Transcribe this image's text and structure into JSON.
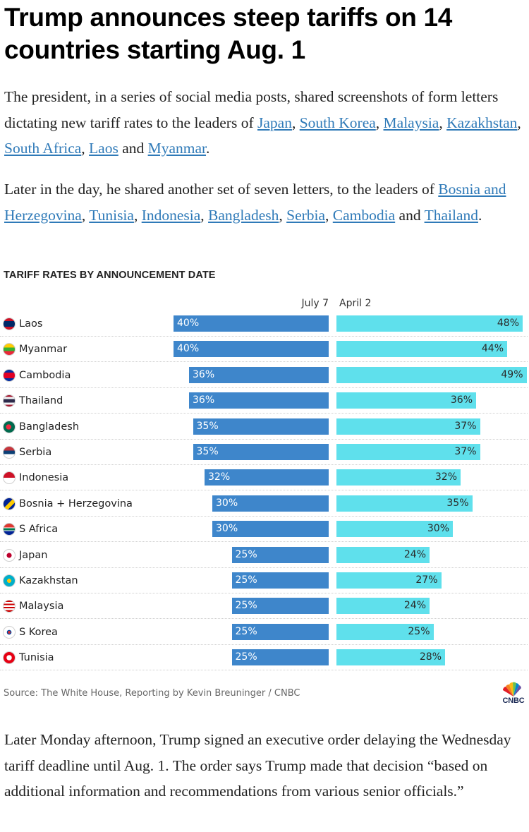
{
  "headline": "Trump announces steep tariffs on 14 countries starting Aug. 1",
  "paragraph1": {
    "lead": "The president, in a series of social media posts, shared screenshots of form letters dictating new tariff rates to the leaders of ",
    "links": [
      "Japan",
      "South Korea",
      "Malaysia",
      "Kazakhstan",
      "South Africa",
      "Laos",
      "Myanmar"
    ],
    "separators": [
      ", ",
      ", ",
      ", ",
      ", ",
      ", ",
      " and ",
      "."
    ]
  },
  "paragraph2": {
    "lead": "Later in the day, he shared another set of seven letters, to the leaders of ",
    "links": [
      "Bosnia and Herzegovina",
      "Tunisia",
      "Indonesia",
      "Bangladesh",
      "Serbia",
      "Cambodia",
      "Thailand"
    ],
    "separators": [
      ", ",
      ", ",
      ", ",
      ", ",
      ", ",
      " and ",
      "."
    ]
  },
  "chart_data": {
    "type": "bar",
    "title": "TARIFF RATES BY ANNOUNCEMENT DATE",
    "categories": [
      "Laos",
      "Myanmar",
      "Cambodia",
      "Thailand",
      "Bangladesh",
      "Serbia",
      "Indonesia",
      "Bosnia + Herzegovina",
      "S Africa",
      "Japan",
      "Kazakhstan",
      "Malaysia",
      "S Korea",
      "Tunisia"
    ],
    "series": [
      {
        "name": "July 7",
        "values": [
          40,
          40,
          36,
          36,
          35,
          35,
          32,
          30,
          30,
          25,
          25,
          25,
          25,
          25
        ],
        "color": "#3e86cb"
      },
      {
        "name": "April 2",
        "values": [
          48,
          44,
          49,
          36,
          37,
          37,
          32,
          35,
          30,
          24,
          27,
          24,
          25,
          28
        ],
        "color": "#5fe0ec"
      }
    ],
    "value_suffix": "%",
    "source": "Source: The White House, Reporting by Kevin Breuninger / CNBC"
  },
  "logo_text": "CNBC",
  "paragraph3": "Later Monday afternoon, Trump signed an executive order delaying the Wednesday tariff deadline until Aug. 1. The order says Trump made that decision “based on additional information and recommendations from various senior officials.”"
}
